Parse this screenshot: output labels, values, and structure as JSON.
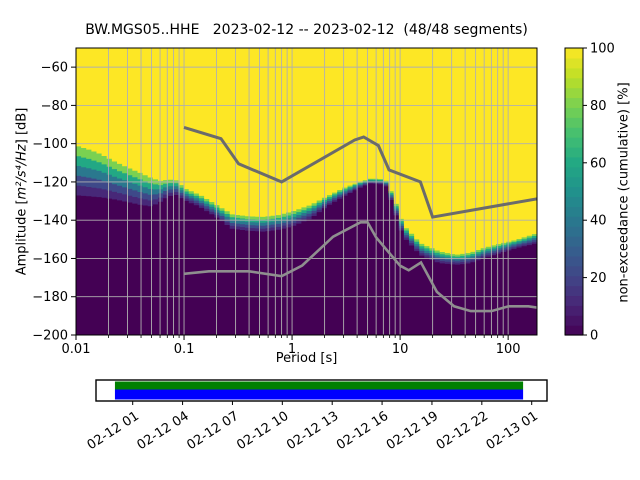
{
  "chart_data": {
    "type": "heatmap",
    "title": "BW.MGS05..HHE   2023-02-12 -- 2023-02-12  (48/48 segments)",
    "xlabel": "Period [s]",
    "ylabel": "Amplitude [m²/s⁴/Hz] [dB]",
    "ylabel_parts": {
      "prefix": "Amplitude [",
      "math": "m²/s⁴/Hz",
      "suffix": "] [dB]"
    },
    "x_scale": "log",
    "xlim": [
      0.01,
      185
    ],
    "ylim": [
      -200,
      -50
    ],
    "grid": true,
    "x_ticks": {
      "values": [
        0.01,
        0.1,
        1,
        10,
        100
      ],
      "labels": [
        "0.01",
        "0.1",
        "1",
        "10",
        "100"
      ]
    },
    "y_ticks": {
      "values": [
        -60,
        -80,
        -100,
        -120,
        -140,
        -160,
        -180,
        -200
      ],
      "labels": [
        "−60",
        "−80",
        "−100",
        "−120",
        "−140",
        "−160",
        "−180",
        "−200"
      ]
    },
    "colorbar": {
      "label": "non-exceedance (cumulative) [%]",
      "range": [
        0,
        100
      ],
      "tick_values": [
        0,
        20,
        40,
        60,
        80,
        100
      ],
      "tick_labels": [
        "0",
        "20",
        "40",
        "60",
        "80",
        "100"
      ],
      "cmap": "viridis",
      "steps": 29
    },
    "psd_cumulative_boundary": {
      "periods_s": [
        0.01,
        0.013,
        0.017,
        0.022,
        0.03,
        0.04,
        0.05,
        0.06,
        0.072,
        0.085,
        0.1,
        0.14,
        0.2,
        0.28,
        0.4,
        0.55,
        0.75,
        1.0,
        1.5,
        2.1,
        3.0,
        4.2,
        5.3,
        6.5,
        7.5,
        9.0,
        10.7,
        15.3,
        23.0,
        33.0,
        45.0,
        59.0,
        80.0,
        119.0,
        150.0,
        185.0
      ],
      "upper_db": [
        -101,
        -103,
        -105.5,
        -109,
        -112.5,
        -115.5,
        -118,
        -119.5,
        -118.8,
        -119.2,
        -123.3,
        -126.8,
        -132,
        -137,
        -138,
        -138.3,
        -137.3,
        -135.5,
        -132,
        -127.6,
        -123.2,
        -120.1,
        -118.3,
        -118.3,
        -119.5,
        -130,
        -142.4,
        -152,
        -156.3,
        -158.1,
        -157,
        -154.6,
        -152.6,
        -150.3,
        -148.5,
        -146.8
      ],
      "lower_db": [
        -127,
        -127.5,
        -128,
        -129,
        -130.5,
        -132,
        -132.8,
        -130.5,
        -127.5,
        -126.8,
        -129.5,
        -133,
        -138.5,
        -144.5,
        -145.5,
        -146,
        -145,
        -143.3,
        -139,
        -132.8,
        -127.6,
        -123.2,
        -120.8,
        -121,
        -122.5,
        -136,
        -148.5,
        -158.1,
        -162.4,
        -163.3,
        -162.5,
        -159.9,
        -157.6,
        -154.6,
        -153.3,
        -152
      ]
    },
    "noise_models": {
      "nhnm_points_period_db": [
        [
          0.1,
          -91.5
        ],
        [
          0.22,
          -97.4
        ],
        [
          0.32,
          -110.5
        ],
        [
          0.8,
          -120.0
        ],
        [
          3.8,
          -98.1
        ],
        [
          4.6,
          -96.5
        ],
        [
          6.3,
          -101.0
        ],
        [
          7.9,
          -113.7
        ],
        [
          15.4,
          -120.0
        ],
        [
          20.0,
          -138.4
        ],
        [
          185.0,
          -128.8
        ]
      ],
      "nlnm_points_period_db": [
        [
          0.1,
          -168.0
        ],
        [
          0.17,
          -166.7
        ],
        [
          0.4,
          -166.7
        ],
        [
          0.8,
          -169.2
        ],
        [
          1.24,
          -163.7
        ],
        [
          2.4,
          -148.6
        ],
        [
          4.3,
          -141.1
        ],
        [
          5.0,
          -141.1
        ],
        [
          6.0,
          -149.0
        ],
        [
          10.0,
          -163.8
        ],
        [
          12.0,
          -166.2
        ],
        [
          15.6,
          -162.1
        ],
        [
          21.9,
          -177.5
        ],
        [
          31.6,
          -185.0
        ],
        [
          45.0,
          -187.5
        ],
        [
          70.0,
          -187.5
        ],
        [
          101.0,
          -185.0
        ],
        [
          154.0,
          -185.0
        ],
        [
          185.0,
          -185.7
        ]
      ]
    },
    "timeline": {
      "tick_labels": [
        "02-12 01",
        "02-12 04",
        "02-12 07",
        "02-12 10",
        "02-12 13",
        "02-12 16",
        "02-12 19",
        "02-12 22",
        "02-13 01"
      ],
      "coverage_frac": [
        0.042,
        0.947
      ],
      "bar_colors": {
        "green": "#008000",
        "blue": "#0000ff"
      }
    }
  },
  "colors": {
    "background": "#ffffff",
    "grid": "#b0b0b0",
    "axis": "#000000",
    "yellow_top": "#fde725",
    "dark_bottom": "#440154",
    "band_colors": [
      "#7ad151",
      "#22a884",
      "#2a788e",
      "#3e4989",
      "#472878"
    ],
    "nhnm_line": "#6b6b6b",
    "nlnm_line": "#8f8f8f",
    "viridis_stops": [
      [
        0,
        "#440154"
      ],
      [
        0.1,
        "#482475"
      ],
      [
        0.2,
        "#414487"
      ],
      [
        0.3,
        "#355f8d"
      ],
      [
        0.4,
        "#2a788e"
      ],
      [
        0.5,
        "#21918c"
      ],
      [
        0.6,
        "#22a884"
      ],
      [
        0.7,
        "#44bf70"
      ],
      [
        0.8,
        "#7ad151"
      ],
      [
        0.9,
        "#bddf26"
      ],
      [
        1,
        "#fde725"
      ]
    ]
  }
}
